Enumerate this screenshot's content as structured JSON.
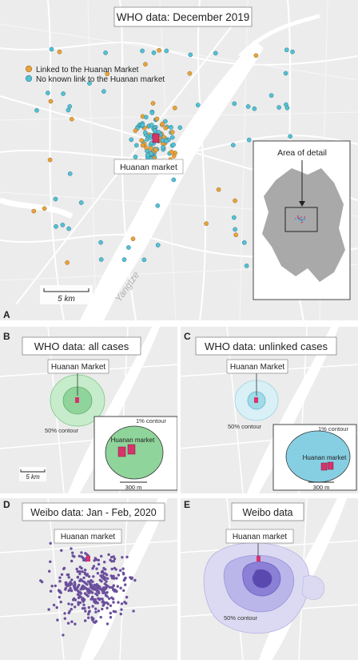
{
  "figure": {
    "panels": [
      {
        "letter": "A",
        "title": "WHO data: December 2019",
        "legend": [
          {
            "label": "Linked to the Huanan Market",
            "color": "#e8a33d"
          },
          {
            "label": "No known link to the Huanan market",
            "color": "#56c0d4"
          }
        ],
        "market_label": "Huanan market",
        "inset_label": "Area of detail",
        "scale_label": "5 km",
        "river_label": "Yangtze"
      },
      {
        "letter": "B",
        "title": "WHO data: all cases",
        "market_label": "Huanan Market",
        "contour_50": "50% contour",
        "contour_1": "1% contour",
        "inset_market_label": "Huanan market",
        "inset_scale": "300 m",
        "scale_label": "5 km"
      },
      {
        "letter": "C",
        "title": "WHO data: unlinked cases",
        "market_label": "Huanan Market",
        "contour_50": "50% contour",
        "contour_1": "1% contour",
        "inset_market_label": "Huanan market",
        "inset_scale": "300 m"
      },
      {
        "letter": "D",
        "title": "Weibo data: Jan - Feb, 2020",
        "market_label": "Huanan market"
      },
      {
        "letter": "E",
        "title": "Weibo data",
        "market_label": "Huanan market",
        "contour_50": "50% contour"
      }
    ],
    "colors": {
      "linked": "#e8a33d",
      "unlinked": "#56c0d4",
      "weibo": "#6a4f9c",
      "market": "#d6336c",
      "river": "#ffffff",
      "land": "#ececec",
      "green_contour": "#8fd49a",
      "blue_contour": "#b6e3ef",
      "purple_contour": "#8b7fd6"
    }
  }
}
